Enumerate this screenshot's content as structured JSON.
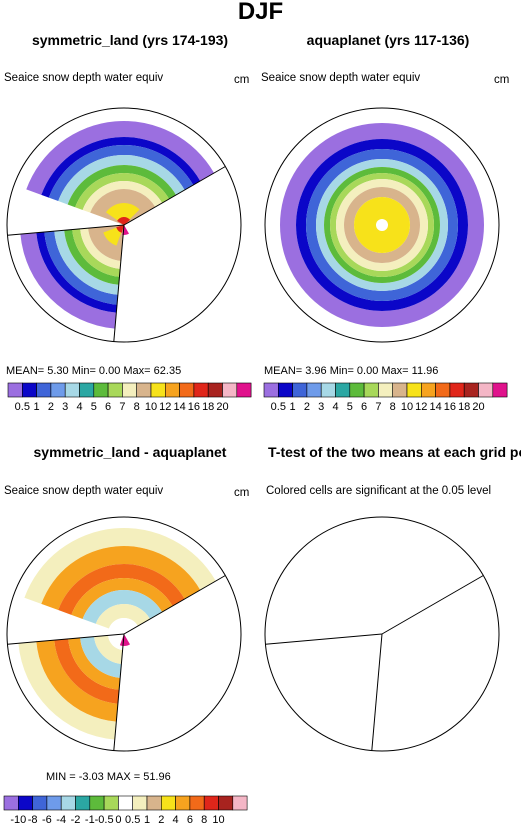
{
  "page_title": "DJF",
  "colors": {
    "scale": [
      "#9b6fe0",
      "#0b06c8",
      "#3f65d8",
      "#6e9bea",
      "#a7d8e6",
      "#2ba7a3",
      "#5dbb3b",
      "#a8d85a",
      "#f4efbe",
      "#d8b48c",
      "#f7e21a",
      "#f6a31f",
      "#f26a19",
      "#e0261a",
      "#a8231f",
      "#f4b6c6",
      "#e0128c"
    ],
    "diff_scale": [
      "#9b6fe0",
      "#0b06c8",
      "#3f65d8",
      "#6e9bea",
      "#a7d8e6",
      "#2ba7a3",
      "#5dbb3b",
      "#a8d85a",
      "#ffffff",
      "#f4efbe",
      "#d8b48c",
      "#f7e21a",
      "#f6a31f",
      "#f26a19",
      "#e0261a",
      "#a8231f",
      "#f4b6c6",
      "#e0128c"
    ]
  },
  "panels": [
    {
      "title": "symmetric_land (yrs 174-193)",
      "subtitle": "Seaice snow depth water equiv",
      "units": "cm",
      "stats": "MEAN=    5.30   Min=    0.00   Max=   62.35"
    },
    {
      "title": "aquaplanet (yrs 117-136)",
      "subtitle": "Seaice snow depth water equiv",
      "units": "cm",
      "stats": "MEAN=    3.96   Min=    0.00   Max=   11.96"
    },
    {
      "title": "symmetric_land - aquaplanet",
      "subtitle": "Seaice snow depth water equiv",
      "units": "cm",
      "stats": "MIN =   -3.03   MAX =   51.96"
    },
    {
      "title": "T-test of the two means at each grid point",
      "subtitle": "Colored cells are significant at the 0.05 level",
      "units": "",
      "stats": ""
    }
  ],
  "chart_data": [
    {
      "type": "heatmap",
      "projection": "polar stereographic",
      "panel": "symmetric_land (yrs 174-193)",
      "colorbar_levels": [
        "0.5",
        "1",
        "2",
        "3",
        "4",
        "5",
        "6",
        "7",
        "8",
        "10",
        "12",
        "14",
        "16",
        "18",
        "20"
      ],
      "mean": 5.3,
      "min": 0.0,
      "max": 62.35
    },
    {
      "type": "heatmap",
      "projection": "polar stereographic",
      "panel": "aquaplanet (yrs 117-136)",
      "colorbar_levels": [
        "0.5",
        "1",
        "2",
        "3",
        "4",
        "5",
        "6",
        "7",
        "8",
        "10",
        "12",
        "14",
        "16",
        "18",
        "20"
      ],
      "mean": 3.96,
      "min": 0.0,
      "max": 11.96
    },
    {
      "type": "heatmap",
      "projection": "polar stereographic",
      "panel": "symmetric_land - aquaplanet",
      "colorbar_levels": [
        "-10",
        "-8",
        "-6",
        "-4",
        "-2",
        "-1",
        "-0.5",
        "0",
        "0.5",
        "1",
        "2",
        "4",
        "6",
        "8",
        "10"
      ],
      "min": -3.03,
      "max": 51.96
    },
    {
      "type": "heatmap",
      "projection": "polar stereographic",
      "panel": "T-test of the two means at each grid point",
      "significant_cells": 0
    }
  ]
}
